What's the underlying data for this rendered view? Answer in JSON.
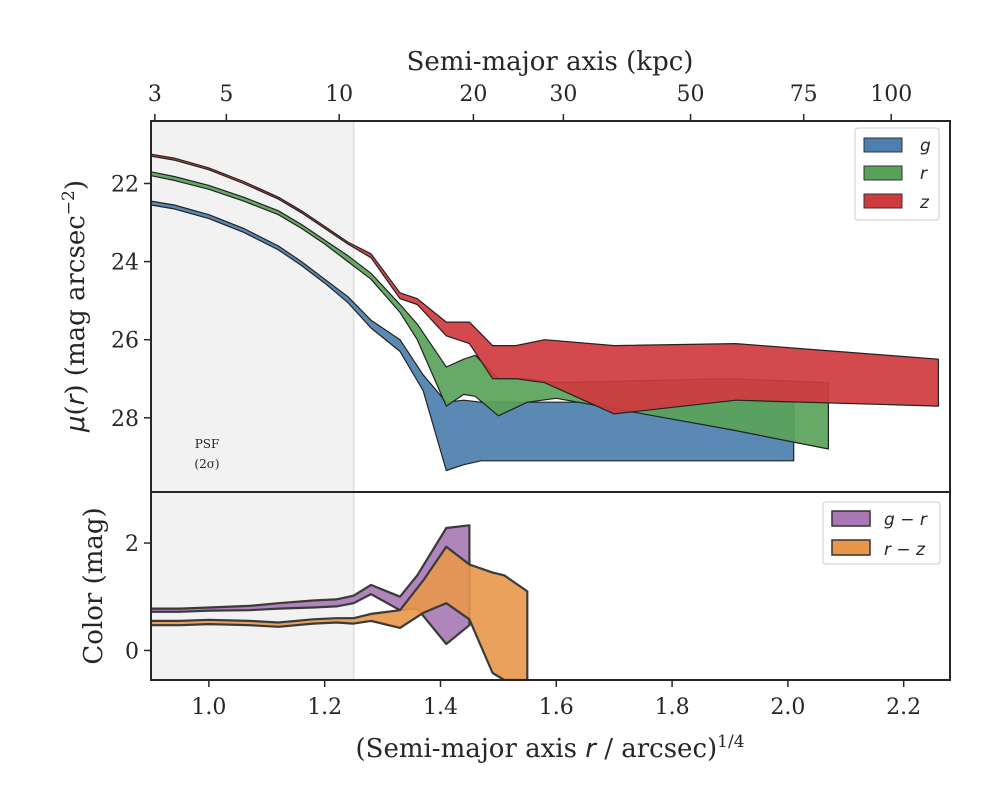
{
  "chart_data": [
    {
      "type": "area",
      "panel": "surface-brightness",
      "xlabel_bottom": "(Semi-major axis r / arcsec)^1/4",
      "xlabel_top": "Semi-major axis (kpc)",
      "ylabel": "μ(r) (mag arcsec⁻²)",
      "xlim": [
        0.9,
        2.28
      ],
      "ylim": [
        29.9,
        20.4
      ],
      "y_inverted": true,
      "y_ticks": [
        22,
        24,
        26,
        28
      ],
      "x_ticks_bottom": [
        1.0,
        1.2,
        1.4,
        1.6,
        1.8,
        2.0,
        2.2
      ],
      "top_axis_ticks_kpc": [
        3,
        5,
        10,
        20,
        30,
        50,
        75,
        100
      ],
      "top_axis_scale_kpc_per_arcsec": 4.44,
      "psf_band": {
        "x_max": 1.25,
        "label_line1": "PSF",
        "label_line2": "(2σ)"
      },
      "legend_position": "top-right",
      "series": [
        {
          "name": "g",
          "color": "#4c7fae",
          "x": [
            0.9,
            0.94,
            1.0,
            1.06,
            1.12,
            1.16,
            1.2,
            1.24,
            1.28,
            1.33,
            1.37,
            1.41,
            1.44,
            1.47,
            1.5,
            1.55,
            1.6,
            2.01
          ],
          "y_upper": [
            22.45,
            22.55,
            22.8,
            23.15,
            23.6,
            24.0,
            24.45,
            24.9,
            25.5,
            26.0,
            26.9,
            27.6,
            27.55,
            27.6,
            27.6,
            27.6,
            27.6,
            27.6
          ],
          "y_lower": [
            22.55,
            22.65,
            22.9,
            23.25,
            23.7,
            24.1,
            24.55,
            25.05,
            25.7,
            26.3,
            27.3,
            29.35,
            29.2,
            29.1,
            29.1,
            29.1,
            29.1,
            29.1
          ]
        },
        {
          "name": "r",
          "color": "#5aa25a",
          "x": [
            0.9,
            0.94,
            1.0,
            1.06,
            1.12,
            1.16,
            1.2,
            1.24,
            1.28,
            1.33,
            1.36,
            1.41,
            1.44,
            1.46,
            1.5,
            1.55,
            1.6,
            1.9,
            2.07
          ],
          "y_upper": [
            21.7,
            21.82,
            22.05,
            22.35,
            22.7,
            23.05,
            23.45,
            23.85,
            24.3,
            25.1,
            25.6,
            26.7,
            26.5,
            26.4,
            27.0,
            27.0,
            27.1,
            27.0,
            27.1
          ],
          "y_lower": [
            21.8,
            21.92,
            22.15,
            22.45,
            22.8,
            23.15,
            23.55,
            24.0,
            24.45,
            25.3,
            26.0,
            27.7,
            27.4,
            27.45,
            27.95,
            27.6,
            27.5,
            28.3,
            28.8
          ]
        },
        {
          "name": "z",
          "color": "#cf3a3e",
          "x": [
            0.9,
            0.94,
            1.0,
            1.06,
            1.12,
            1.16,
            1.2,
            1.24,
            1.28,
            1.33,
            1.36,
            1.41,
            1.45,
            1.49,
            1.53,
            1.58,
            1.7,
            1.91,
            2.26
          ],
          "y_upper": [
            21.25,
            21.35,
            21.6,
            21.95,
            22.35,
            22.7,
            23.1,
            23.5,
            23.8,
            24.8,
            24.95,
            25.55,
            25.55,
            26.15,
            26.15,
            26.0,
            26.15,
            26.1,
            26.5
          ],
          "y_lower": [
            21.3,
            21.4,
            21.65,
            22.0,
            22.4,
            22.75,
            23.15,
            23.55,
            23.9,
            24.95,
            25.1,
            25.9,
            26.1,
            27.0,
            27.0,
            27.1,
            27.9,
            27.55,
            27.7
          ]
        }
      ]
    },
    {
      "type": "area",
      "panel": "color",
      "xlabel": "(Semi-major axis r / arcsec)^1/4",
      "ylabel": "Color (mag)",
      "xlim": [
        0.9,
        2.28
      ],
      "ylim": [
        -0.55,
        2.95
      ],
      "y_ticks": [
        0,
        2
      ],
      "x_ticks": [
        1.0,
        1.2,
        1.4,
        1.6,
        1.8,
        2.0,
        2.2
      ],
      "legend_position": "top-right",
      "series": [
        {
          "name": "g − r",
          "color": "#a778b5",
          "x": [
            0.9,
            0.95,
            1.0,
            1.07,
            1.12,
            1.18,
            1.22,
            1.25,
            1.28,
            1.33,
            1.36,
            1.41,
            1.45
          ],
          "y_upper": [
            0.78,
            0.78,
            0.8,
            0.83,
            0.88,
            0.93,
            0.95,
            1.02,
            1.22,
            1.0,
            1.4,
            2.28,
            2.33
          ],
          "y_lower": [
            0.72,
            0.72,
            0.74,
            0.75,
            0.78,
            0.8,
            0.82,
            0.88,
            1.05,
            0.75,
            0.78,
            0.12,
            0.47
          ]
        },
        {
          "name": "r − z",
          "color": "#e8974a",
          "x": [
            0.9,
            0.95,
            1.0,
            1.07,
            1.12,
            1.18,
            1.22,
            1.25,
            1.28,
            1.33,
            1.37,
            1.41,
            1.45,
            1.49,
            1.51,
            1.55
          ],
          "y_upper": [
            0.55,
            0.55,
            0.57,
            0.55,
            0.52,
            0.58,
            0.6,
            0.6,
            0.68,
            0.75,
            1.3,
            1.93,
            1.6,
            1.45,
            1.4,
            1.1
          ],
          "y_lower": [
            0.47,
            0.47,
            0.49,
            0.47,
            0.44,
            0.5,
            0.52,
            0.5,
            0.55,
            0.42,
            0.7,
            0.88,
            0.58,
            -0.42,
            -0.55,
            -0.55
          ]
        }
      ]
    }
  ],
  "labels": {
    "top_title": "Semi-major axis (kpc)",
    "top_ticks": [
      "3",
      "5",
      "10",
      "20",
      "30",
      "50",
      "75",
      "100"
    ],
    "bottom_ticks": [
      "1.0",
      "1.2",
      "1.4",
      "1.6",
      "1.8",
      "2.0",
      "2.2"
    ],
    "main_y_ticks": [
      "22",
      "24",
      "26",
      "28"
    ],
    "color_y_ticks": [
      "2",
      "0"
    ],
    "psf_line1": "PSF",
    "psf_line2": "(2σ)",
    "legend_main": [
      "g",
      "r",
      "z"
    ],
    "legend_color": [
      "g − r",
      "r − z"
    ]
  }
}
